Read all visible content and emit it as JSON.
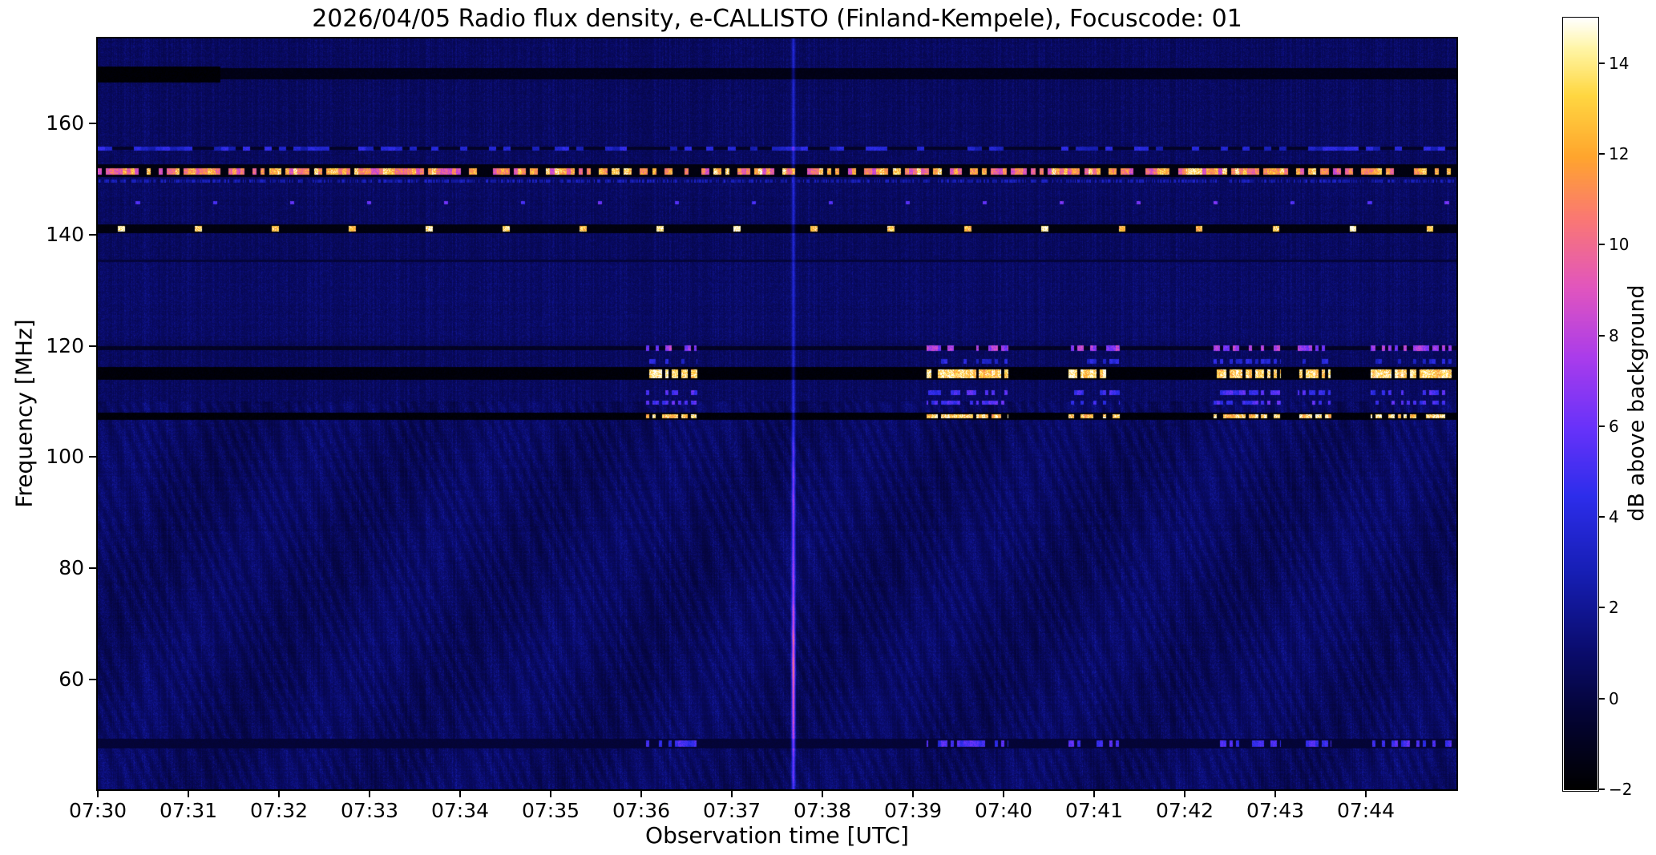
{
  "chart_data": {
    "type": "heatmap",
    "title": "2026/04/05  Radio flux density, e-CALLISTO (Finland-Kempele), Focuscode: 01",
    "xlabel": "Observation time [UTC]",
    "ylabel": "Frequency [MHz]",
    "x_tick_labels": [
      "07:30",
      "07:31",
      "07:32",
      "07:33",
      "07:34",
      "07:35",
      "07:36",
      "07:37",
      "07:38",
      "07:39",
      "07:40",
      "07:41",
      "07:42",
      "07:43",
      "07:44"
    ],
    "duration_min": 15,
    "y_range": [
      40.2,
      175.3
    ],
    "y_ticks": [
      160,
      140,
      120,
      100,
      80,
      60
    ],
    "grid": false,
    "colorbar": {
      "label": "dB above background",
      "range": [
        -2,
        15
      ],
      "ticks": [
        14,
        12,
        10,
        8,
        6,
        4,
        2,
        0,
        -2
      ]
    },
    "colormap_stops": [
      [
        0.0,
        [
          0,
          0,
          0
        ]
      ],
      [
        0.1,
        [
          4,
          4,
          55
        ]
      ],
      [
        0.18,
        [
          10,
          12,
          110
        ]
      ],
      [
        0.28,
        [
          22,
          30,
          180
        ]
      ],
      [
        0.38,
        [
          45,
          45,
          235
        ]
      ],
      [
        0.47,
        [
          105,
          50,
          250
        ]
      ],
      [
        0.56,
        [
          170,
          60,
          235
        ]
      ],
      [
        0.65,
        [
          225,
          85,
          190
        ]
      ],
      [
        0.74,
        [
          250,
          120,
          115
        ]
      ],
      [
        0.82,
        [
          255,
          165,
          45
        ]
      ],
      [
        0.9,
        [
          255,
          215,
          65
        ]
      ],
      [
        0.96,
        [
          255,
          245,
          165
        ]
      ],
      [
        1.0,
        [
          255,
          255,
          255
        ]
      ]
    ],
    "spectrogram": {
      "noise": {
        "base_db": 0.25,
        "column_amp": 0.9,
        "pixel_amp": 0.75,
        "row_amp": 0.25
      },
      "wave_region_max_freq": 110,
      "wave_amp_db": 0.5,
      "speckle_band": {
        "f_lo": 121,
        "f_hi": 135,
        "amp_db": 0.3
      },
      "dark_bands": [
        {
          "f_lo": 167.9,
          "f_hi": 169.9,
          "db": -1.5
        },
        {
          "f_lo": 167.3,
          "f_hi": 170.3,
          "db": -2.0,
          "t_lo": 0,
          "t_hi": 1.35
        },
        {
          "f_lo": 155.2,
          "f_hi": 155.8,
          "db": -0.9
        },
        {
          "f_lo": 150.3,
          "f_hi": 152.6,
          "db": -1.7
        },
        {
          "f_lo": 140.3,
          "f_hi": 141.9,
          "db": -1.7
        },
        {
          "f_lo": 119.2,
          "f_hi": 119.9,
          "db": -1.0
        },
        {
          "f_lo": 113.9,
          "f_hi": 116.2,
          "db": -1.9
        },
        {
          "f_lo": 106.6,
          "f_hi": 107.9,
          "db": -1.9
        },
        {
          "f_lo": 135.1,
          "f_hi": 135.5,
          "db": -0.4
        },
        {
          "f_lo": 47.6,
          "f_hi": 49.3,
          "db": -0.5
        }
      ],
      "carriers": [
        {
          "name": "fm-151",
          "f_lo": 150.8,
          "f_hi": 151.9,
          "mode": "random",
          "cell_min": 0.045,
          "prob": 0.7,
          "db_min": 8.5,
          "db_max": 14.0
        },
        {
          "name": "beacon-141",
          "f_lo": 140.6,
          "f_hi": 141.5,
          "mode": "periodic",
          "period_min": 0.85,
          "phase": 0.22,
          "duty": 0.09,
          "db_min": 12.5,
          "db_max": 15.0
        },
        {
          "name": "dots-146",
          "f_lo": 145.4,
          "f_hi": 146.1,
          "mode": "periodic",
          "period_min": 0.85,
          "phase": 0.42,
          "duty": 0.055,
          "db_min": 5.0,
          "db_max": 6.5
        },
        {
          "name": "comb-149",
          "f_lo": 149.4,
          "f_hi": 149.9,
          "mode": "random",
          "cell_min": 0.0125,
          "prob": 0.55,
          "db_min": 1.8,
          "db_max": 3.5
        },
        {
          "name": "dashes-155",
          "f_lo": 155.1,
          "f_hi": 155.8,
          "mode": "random",
          "cell_min": 0.08,
          "prob": 0.45,
          "db_min": 2.5,
          "db_max": 4.5
        }
      ],
      "burst_windows_min": [
        [
          6.05,
          6.62
        ],
        [
          9.15,
          10.05
        ],
        [
          10.72,
          11.28
        ],
        [
          12.32,
          13.06
        ],
        [
          13.25,
          13.62
        ],
        [
          14.05,
          14.95
        ]
      ],
      "burst_cell_min": 0.035,
      "burst_rows": [
        {
          "f_lo": 114.2,
          "f_hi": 115.8,
          "prob": 0.78,
          "db_min": 12.5,
          "db_max": 15.0
        },
        {
          "f_lo": 106.9,
          "f_hi": 107.7,
          "prob": 0.7,
          "db_min": 12.0,
          "db_max": 15.0
        },
        {
          "f_lo": 119.0,
          "f_hi": 120.1,
          "prob": 0.55,
          "db_min": 6.0,
          "db_max": 8.5
        },
        {
          "f_lo": 109.4,
          "f_hi": 110.2,
          "prob": 0.5,
          "db_min": 4.0,
          "db_max": 6.0
        },
        {
          "f_lo": 111.2,
          "f_hi": 112.0,
          "prob": 0.5,
          "db_min": 4.0,
          "db_max": 6.0
        },
        {
          "f_lo": 116.8,
          "f_hi": 117.6,
          "prob": 0.35,
          "db_min": 3.0,
          "db_max": 4.5
        },
        {
          "f_lo": 47.9,
          "f_hi": 49.0,
          "prob": 0.6,
          "db_min": 4.0,
          "db_max": 5.8
        }
      ],
      "vertical_event": {
        "t_min": 7.68,
        "sigma_min": 0.02,
        "base_db": 2.8,
        "gauss1": {
          "center_f": 61,
          "sigma_f": 18,
          "amp_db": 6.5
        },
        "gauss2": {
          "center_f": 93,
          "sigma_f": 13,
          "amp_db": 3.0
        }
      }
    }
  }
}
